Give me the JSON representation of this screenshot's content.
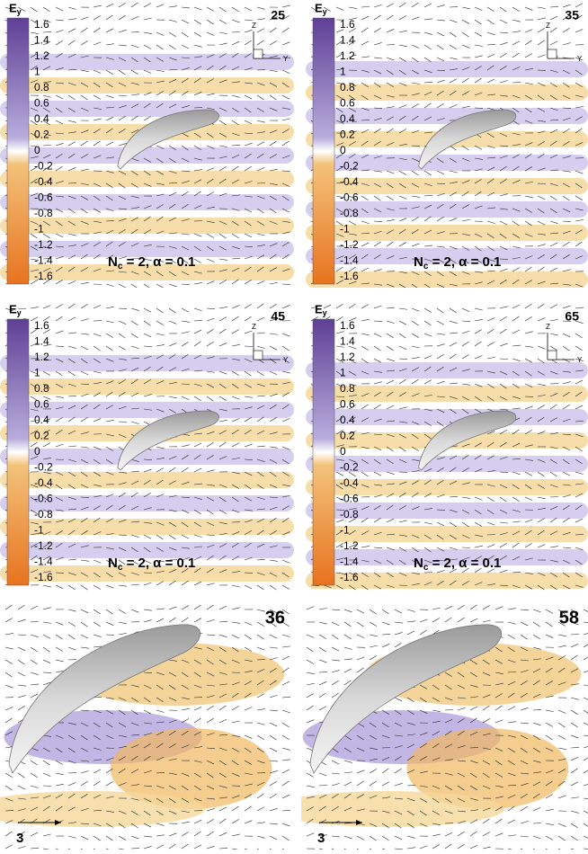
{
  "panels": [
    {
      "label": "25",
      "colorbar": {
        "title": "E",
        "subscript": "y",
        "ticks": [
          "1.6",
          "1.4",
          "1.2",
          "1",
          "0.8",
          "0.6",
          "0.4",
          "0.2",
          "0",
          "-0.2",
          "-0.4",
          "-0.6",
          "-0.8",
          "-1",
          "-1.2",
          "-1.4",
          "-1.6"
        ]
      },
      "axes": {
        "z": "Z",
        "y": "Y"
      },
      "caption": {
        "main": "N",
        "subscript": "c",
        "rest": " = 2, α = 0.1"
      }
    },
    {
      "label": "35",
      "colorbar": {
        "title": "E",
        "subscript": "y",
        "ticks": [
          "1.6",
          "1.4",
          "1.2",
          "1",
          "0.8",
          "0.6",
          "0.4",
          "0.2",
          "0",
          "-0.2",
          "-0.4",
          "-0.6",
          "-0.8",
          "-1",
          "-1.2",
          "-1.4",
          "-1.6"
        ]
      },
      "axes": {
        "z": "Z",
        "y": "Y"
      },
      "caption": {
        "main": "N",
        "subscript": "c",
        "rest": " = 2, α = 0.1"
      }
    },
    {
      "label": "45",
      "colorbar": {
        "title": "E",
        "subscript": "y",
        "ticks": [
          "1.6",
          "1.4",
          "1.2",
          "1",
          "0.8",
          "0.6",
          "0.4",
          "0.2",
          "0",
          "-0.2",
          "-0.4",
          "-0.6",
          "-0.8",
          "-1",
          "-1.2",
          "-1.4",
          "-1.6"
        ]
      },
      "axes": {
        "z": "Z",
        "y": "Y"
      },
      "caption": {
        "main": "N",
        "subscript": "c",
        "rest": " = 2, α = 0.1"
      }
    },
    {
      "label": "65",
      "colorbar": {
        "title": "E",
        "subscript": "y",
        "ticks": [
          "1.6",
          "1.4",
          "1.2",
          "1",
          "0.8",
          "0.6",
          "0.4",
          "0.2",
          "0",
          "-0.2",
          "-0.4",
          "-0.6",
          "-0.8",
          "-1",
          "-1.2",
          "-1.4",
          "-1.6"
        ]
      },
      "axes": {
        "z": "Z",
        "y": "Y"
      },
      "caption": {
        "main": "N",
        "subscript": "c",
        "rest": " = 2, α = 0.1"
      }
    },
    {
      "label": "36",
      "scale": "3"
    },
    {
      "label": "58",
      "scale": "3"
    }
  ]
}
